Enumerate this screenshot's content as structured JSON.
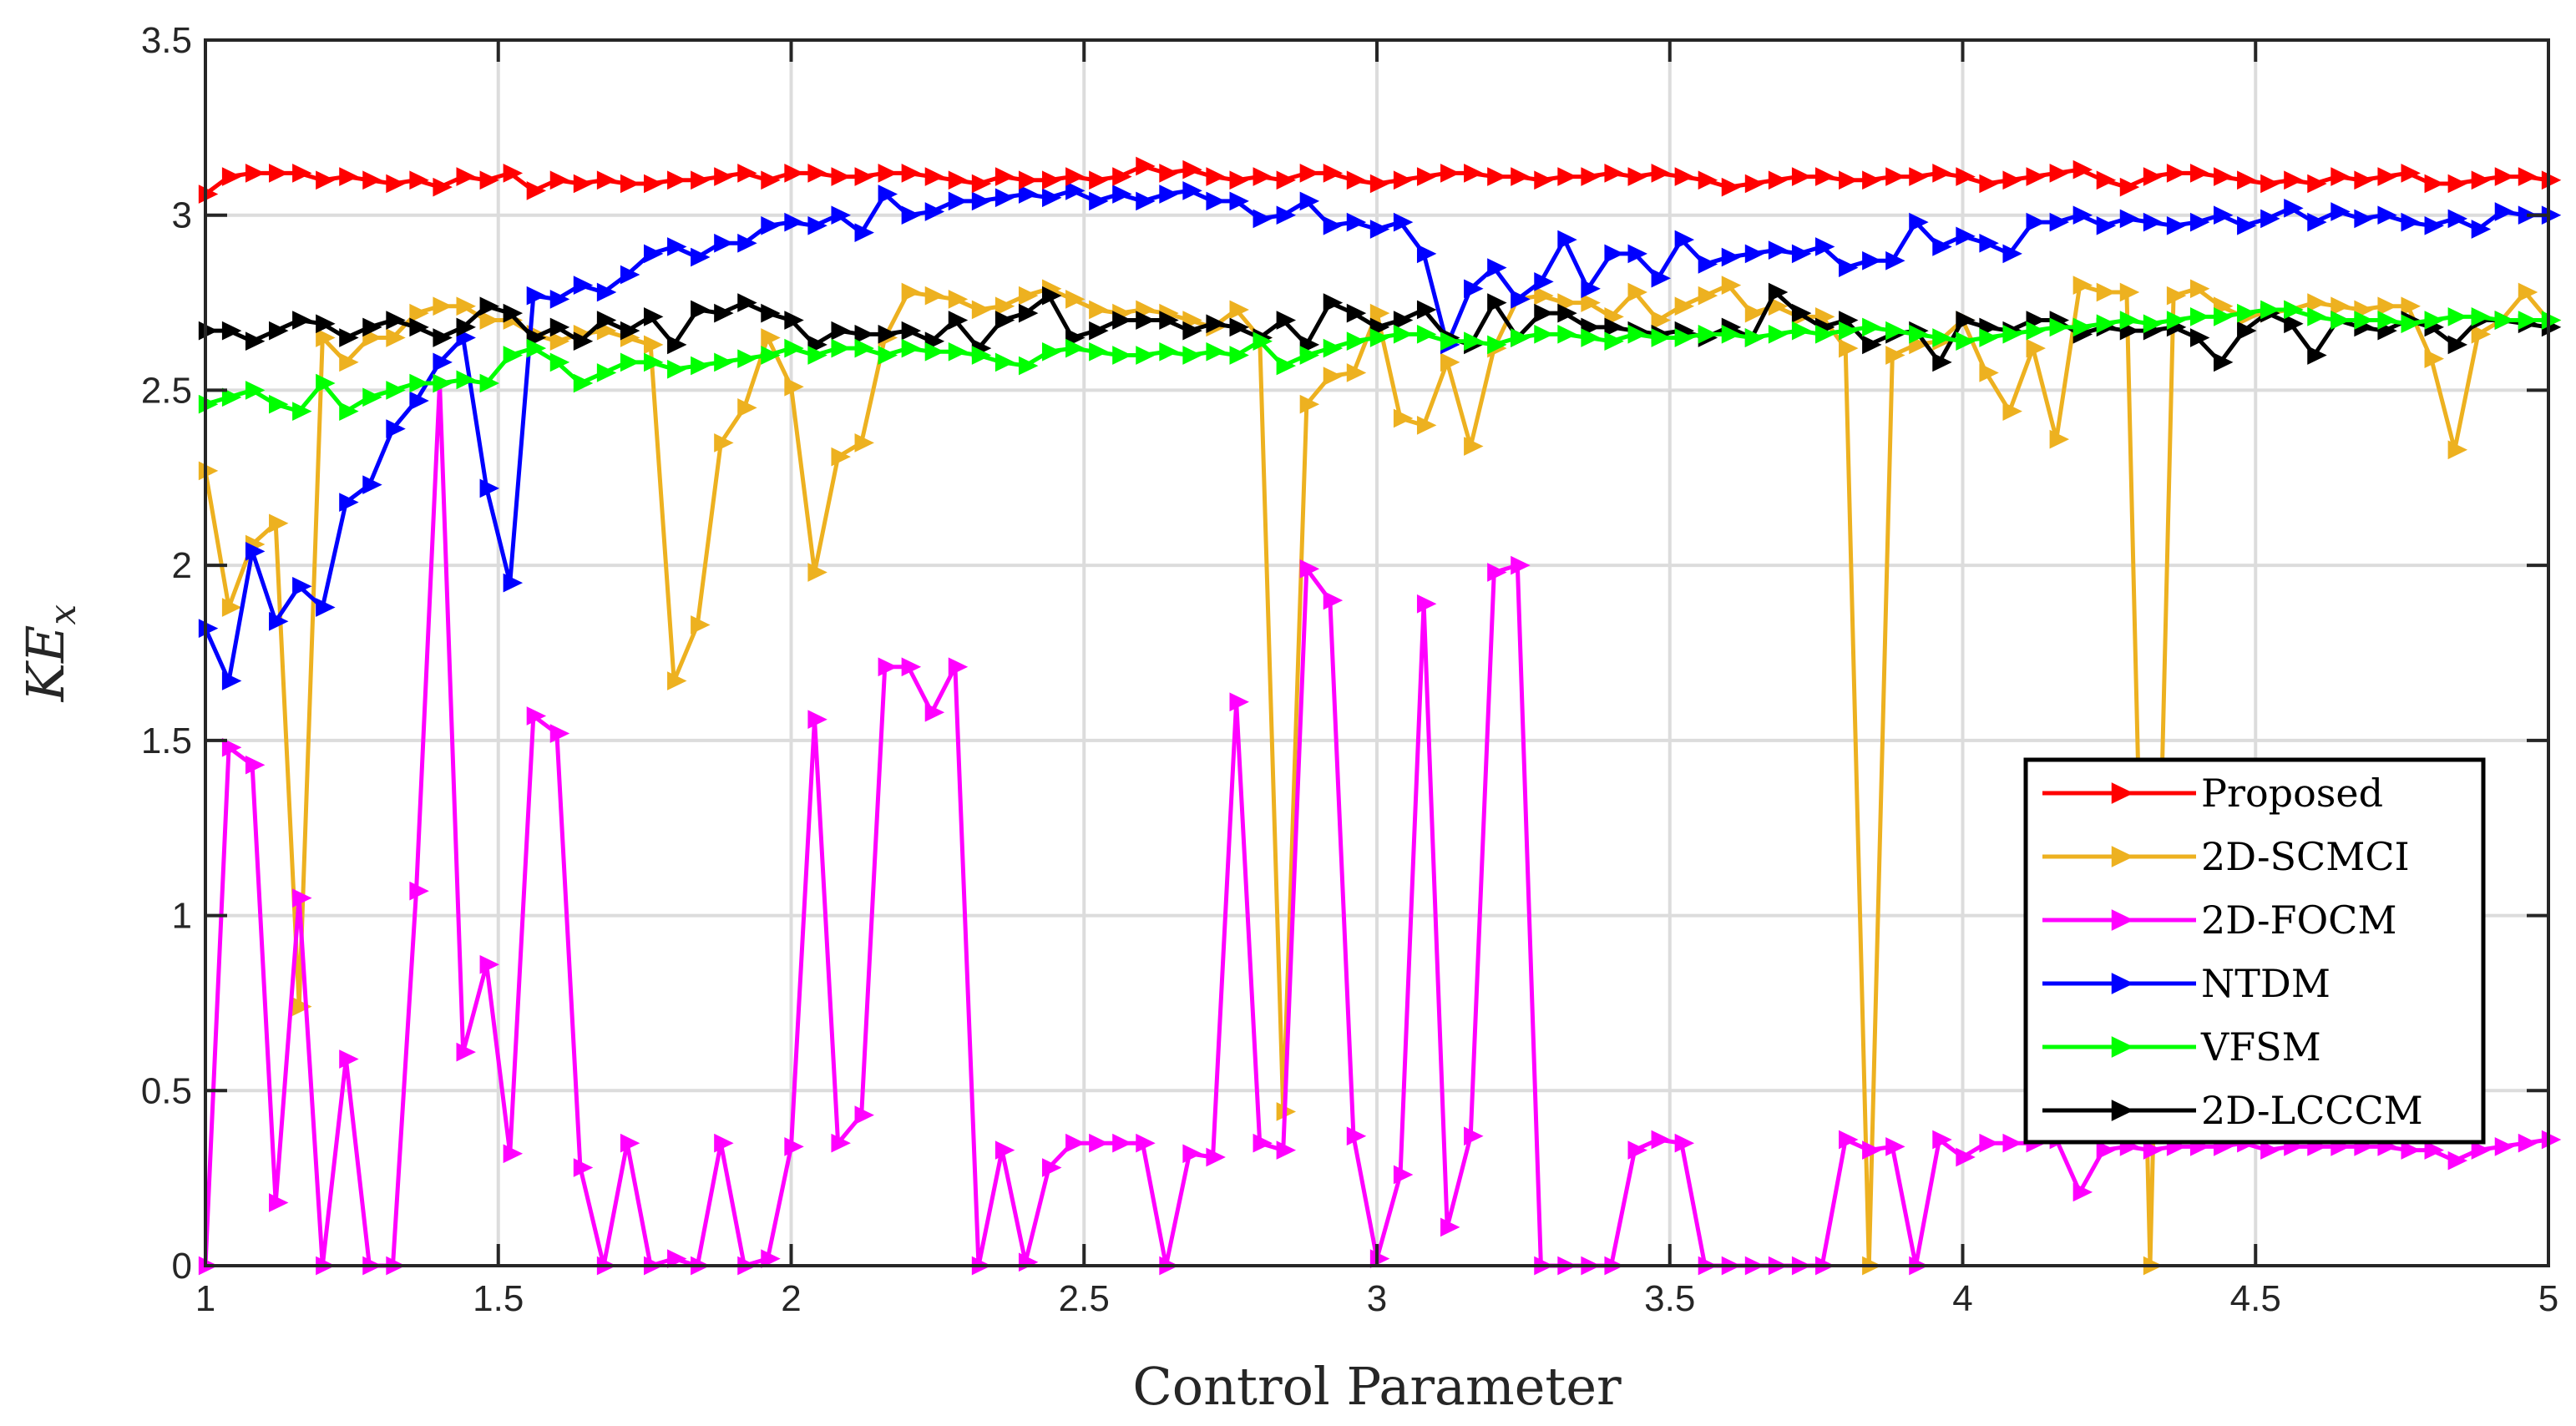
{
  "chart_data": {
    "type": "line",
    "xlabel": "Control Parameter",
    "ylabel": "KE",
    "ylabel_subscript": "x",
    "xlim": [
      1,
      5
    ],
    "ylim": [
      0,
      3.5
    ],
    "xticks": [
      1,
      1.5,
      2,
      2.5,
      3,
      3.5,
      4,
      4.5,
      5
    ],
    "xtick_labels": [
      "1",
      "1.5",
      "2",
      "2.5",
      "3",
      "3.5",
      "4",
      "4.5",
      "5"
    ],
    "yticks": [
      0,
      0.5,
      1,
      1.5,
      2,
      2.5,
      3,
      3.5
    ],
    "ytick_labels": [
      "0",
      "0.5",
      "1",
      "1.5",
      "2",
      "2.5",
      "3",
      "3.5"
    ],
    "grid": true,
    "legend_position": "bottom-right",
    "x": [
      1.0,
      1.04,
      1.08,
      1.12,
      1.16,
      1.2,
      1.24,
      1.28,
      1.32,
      1.36,
      1.4,
      1.44,
      1.48,
      1.52,
      1.56,
      1.6,
      1.64,
      1.68,
      1.72,
      1.76,
      1.8,
      1.84,
      1.88,
      1.92,
      1.96,
      2.0,
      2.04,
      2.08,
      2.12,
      2.16,
      2.2,
      2.24,
      2.28,
      2.32,
      2.36,
      2.4,
      2.44,
      2.48,
      2.52,
      2.56,
      2.6,
      2.64,
      2.68,
      2.72,
      2.76,
      2.8,
      2.84,
      2.88,
      2.92,
      2.96,
      3.0,
      3.04,
      3.08,
      3.12,
      3.16,
      3.2,
      3.24,
      3.28,
      3.32,
      3.36,
      3.4,
      3.44,
      3.48,
      3.52,
      3.56,
      3.6,
      3.64,
      3.68,
      3.72,
      3.76,
      3.8,
      3.84,
      3.88,
      3.92,
      3.96,
      4.0,
      4.04,
      4.08,
      4.12,
      4.16,
      4.2,
      4.24,
      4.28,
      4.32,
      4.36,
      4.4,
      4.44,
      4.48,
      4.52,
      4.56,
      4.6,
      4.64,
      4.68,
      4.72,
      4.76,
      4.8,
      4.84,
      4.88,
      4.92,
      4.96,
      5.0
    ],
    "series": [
      {
        "name": "Proposed",
        "color": "#ff0000",
        "values": [
          3.06,
          3.11,
          3.12,
          3.12,
          3.12,
          3.1,
          3.11,
          3.1,
          3.09,
          3.1,
          3.08,
          3.11,
          3.1,
          3.12,
          3.07,
          3.1,
          3.09,
          3.1,
          3.09,
          3.09,
          3.1,
          3.1,
          3.11,
          3.12,
          3.1,
          3.12,
          3.12,
          3.11,
          3.11,
          3.12,
          3.12,
          3.11,
          3.1,
          3.09,
          3.11,
          3.1,
          3.1,
          3.11,
          3.1,
          3.11,
          3.14,
          3.12,
          3.13,
          3.11,
          3.1,
          3.11,
          3.1,
          3.12,
          3.12,
          3.1,
          3.09,
          3.1,
          3.11,
          3.12,
          3.12,
          3.11,
          3.11,
          3.1,
          3.11,
          3.11,
          3.12,
          3.11,
          3.12,
          3.11,
          3.1,
          3.08,
          3.09,
          3.1,
          3.11,
          3.11,
          3.1,
          3.1,
          3.11,
          3.11,
          3.12,
          3.11,
          3.09,
          3.1,
          3.11,
          3.12,
          3.13,
          3.1,
          3.08,
          3.11,
          3.12,
          3.12,
          3.11,
          3.1,
          3.09,
          3.1,
          3.09,
          3.11,
          3.1,
          3.11,
          3.12,
          3.09,
          3.09,
          3.1,
          3.11,
          3.11,
          3.1
        ]
      },
      {
        "name": "2D-SCMCI",
        "color": "#edb120",
        "values": [
          2.27,
          1.88,
          2.06,
          2.12,
          0.74,
          2.65,
          2.58,
          2.65,
          2.65,
          2.72,
          2.74,
          2.74,
          2.7,
          2.7,
          2.66,
          2.64,
          2.66,
          2.67,
          2.65,
          2.63,
          1.67,
          1.83,
          2.35,
          2.45,
          2.65,
          2.51,
          1.98,
          2.31,
          2.35,
          2.65,
          2.78,
          2.77,
          2.76,
          2.73,
          2.74,
          2.77,
          2.79,
          2.76,
          2.73,
          2.72,
          2.73,
          2.72,
          2.7,
          2.68,
          2.73,
          2.65,
          0.44,
          2.46,
          2.54,
          2.55,
          2.72,
          2.42,
          2.4,
          2.58,
          2.34,
          2.62,
          2.76,
          2.77,
          2.75,
          2.75,
          2.71,
          2.78,
          2.7,
          2.74,
          2.77,
          2.8,
          2.72,
          2.74,
          2.71,
          2.71,
          2.62,
          0.0,
          2.6,
          2.63,
          2.64,
          2.7,
          2.55,
          2.44,
          2.62,
          2.36,
          2.8,
          2.78,
          2.78,
          0.0,
          2.77,
          2.79,
          2.74,
          2.71,
          2.72,
          2.73,
          2.75,
          2.74,
          2.73,
          2.74,
          2.74,
          2.59,
          2.33,
          2.66,
          2.7,
          2.78,
          2.7
        ]
      },
      {
        "name": "2D-FOCM",
        "color": "#ff00ff",
        "values": [
          0.0,
          1.48,
          1.43,
          0.18,
          1.05,
          0.0,
          0.59,
          0.0,
          0.0,
          1.07,
          2.52,
          0.61,
          0.86,
          0.32,
          1.57,
          1.52,
          0.28,
          0.0,
          0.35,
          0.0,
          0.02,
          0.0,
          0.35,
          0.0,
          0.02,
          0.34,
          1.56,
          0.35,
          0.43,
          1.71,
          1.71,
          1.58,
          1.71,
          0.0,
          0.33,
          0.01,
          0.28,
          0.35,
          0.35,
          0.35,
          0.35,
          0.0,
          0.32,
          0.31,
          1.61,
          0.35,
          0.33,
          1.99,
          1.9,
          0.37,
          0.02,
          0.26,
          1.89,
          0.11,
          0.37,
          1.98,
          2.0,
          0.0,
          0.0,
          0.0,
          0.0,
          0.33,
          0.36,
          0.35,
          0.0,
          0.0,
          0.0,
          0.0,
          0.0,
          0.0,
          0.36,
          0.33,
          0.34,
          0.0,
          0.36,
          0.31,
          0.35,
          0.35,
          0.35,
          0.36,
          0.21,
          0.33,
          0.34,
          0.33,
          0.34,
          0.34,
          0.34,
          0.35,
          0.33,
          0.34,
          0.34,
          0.34,
          0.34,
          0.34,
          0.33,
          0.33,
          0.3,
          0.33,
          0.34,
          0.35,
          0.36
        ]
      },
      {
        "name": "NTDM",
        "color": "#0000ff",
        "values": [
          1.82,
          1.67,
          2.04,
          1.84,
          1.94,
          1.88,
          2.18,
          2.23,
          2.39,
          2.47,
          2.58,
          2.65,
          2.22,
          1.95,
          2.77,
          2.76,
          2.8,
          2.78,
          2.83,
          2.89,
          2.91,
          2.88,
          2.92,
          2.92,
          2.97,
          2.98,
          2.97,
          3.0,
          2.95,
          3.06,
          3.0,
          3.01,
          3.04,
          3.04,
          3.05,
          3.06,
          3.05,
          3.07,
          3.04,
          3.06,
          3.04,
          3.06,
          3.07,
          3.04,
          3.04,
          2.99,
          3.0,
          3.04,
          2.97,
          2.98,
          2.96,
          2.98,
          2.89,
          2.63,
          2.79,
          2.85,
          2.76,
          2.81,
          2.93,
          2.79,
          2.89,
          2.89,
          2.82,
          2.93,
          2.86,
          2.88,
          2.89,
          2.9,
          2.89,
          2.91,
          2.85,
          2.87,
          2.87,
          2.98,
          2.91,
          2.94,
          2.92,
          2.89,
          2.98,
          2.98,
          3.0,
          2.97,
          2.99,
          2.98,
          2.97,
          2.98,
          3.0,
          2.97,
          2.99,
          3.02,
          2.98,
          3.01,
          2.99,
          3.0,
          2.98,
          2.97,
          2.99,
          2.96,
          3.01,
          3.0,
          3.0
        ]
      },
      {
        "name": "VFSM",
        "color": "#00ff00",
        "values": [
          2.46,
          2.48,
          2.5,
          2.46,
          2.44,
          2.52,
          2.44,
          2.48,
          2.5,
          2.52,
          2.52,
          2.53,
          2.52,
          2.6,
          2.62,
          2.58,
          2.52,
          2.55,
          2.58,
          2.58,
          2.56,
          2.57,
          2.58,
          2.59,
          2.6,
          2.62,
          2.6,
          2.62,
          2.62,
          2.6,
          2.62,
          2.61,
          2.61,
          2.6,
          2.58,
          2.57,
          2.61,
          2.62,
          2.61,
          2.6,
          2.6,
          2.61,
          2.6,
          2.61,
          2.6,
          2.64,
          2.57,
          2.6,
          2.62,
          2.64,
          2.65,
          2.66,
          2.66,
          2.64,
          2.64,
          2.63,
          2.65,
          2.66,
          2.66,
          2.65,
          2.64,
          2.66,
          2.65,
          2.65,
          2.66,
          2.66,
          2.65,
          2.66,
          2.67,
          2.66,
          2.67,
          2.68,
          2.67,
          2.66,
          2.65,
          2.64,
          2.65,
          2.66,
          2.67,
          2.68,
          2.68,
          2.69,
          2.7,
          2.69,
          2.7,
          2.71,
          2.71,
          2.72,
          2.73,
          2.73,
          2.71,
          2.7,
          2.7,
          2.7,
          2.69,
          2.7,
          2.71,
          2.71,
          2.7,
          2.7,
          2.7
        ]
      },
      {
        "name": "2D-LCCCM",
        "color": "#000000",
        "values": [
          2.67,
          2.67,
          2.64,
          2.67,
          2.7,
          2.69,
          2.65,
          2.68,
          2.7,
          2.68,
          2.65,
          2.68,
          2.74,
          2.72,
          2.65,
          2.68,
          2.64,
          2.7,
          2.67,
          2.71,
          2.63,
          2.73,
          2.72,
          2.75,
          2.72,
          2.7,
          2.63,
          2.67,
          2.66,
          2.66,
          2.67,
          2.64,
          2.7,
          2.62,
          2.7,
          2.72,
          2.77,
          2.65,
          2.67,
          2.7,
          2.7,
          2.7,
          2.67,
          2.69,
          2.68,
          2.65,
          2.7,
          2.63,
          2.75,
          2.72,
          2.68,
          2.7,
          2.73,
          2.65,
          2.63,
          2.75,
          2.65,
          2.72,
          2.72,
          2.68,
          2.68,
          2.67,
          2.66,
          2.67,
          2.65,
          2.68,
          2.65,
          2.78,
          2.72,
          2.68,
          2.7,
          2.63,
          2.66,
          2.67,
          2.58,
          2.7,
          2.68,
          2.67,
          2.7,
          2.7,
          2.66,
          2.68,
          2.67,
          2.67,
          2.68,
          2.65,
          2.58,
          2.67,
          2.72,
          2.69,
          2.6,
          2.7,
          2.68,
          2.67,
          2.7,
          2.68,
          2.63,
          2.7,
          2.7,
          2.69,
          2.68
        ]
      }
    ]
  }
}
